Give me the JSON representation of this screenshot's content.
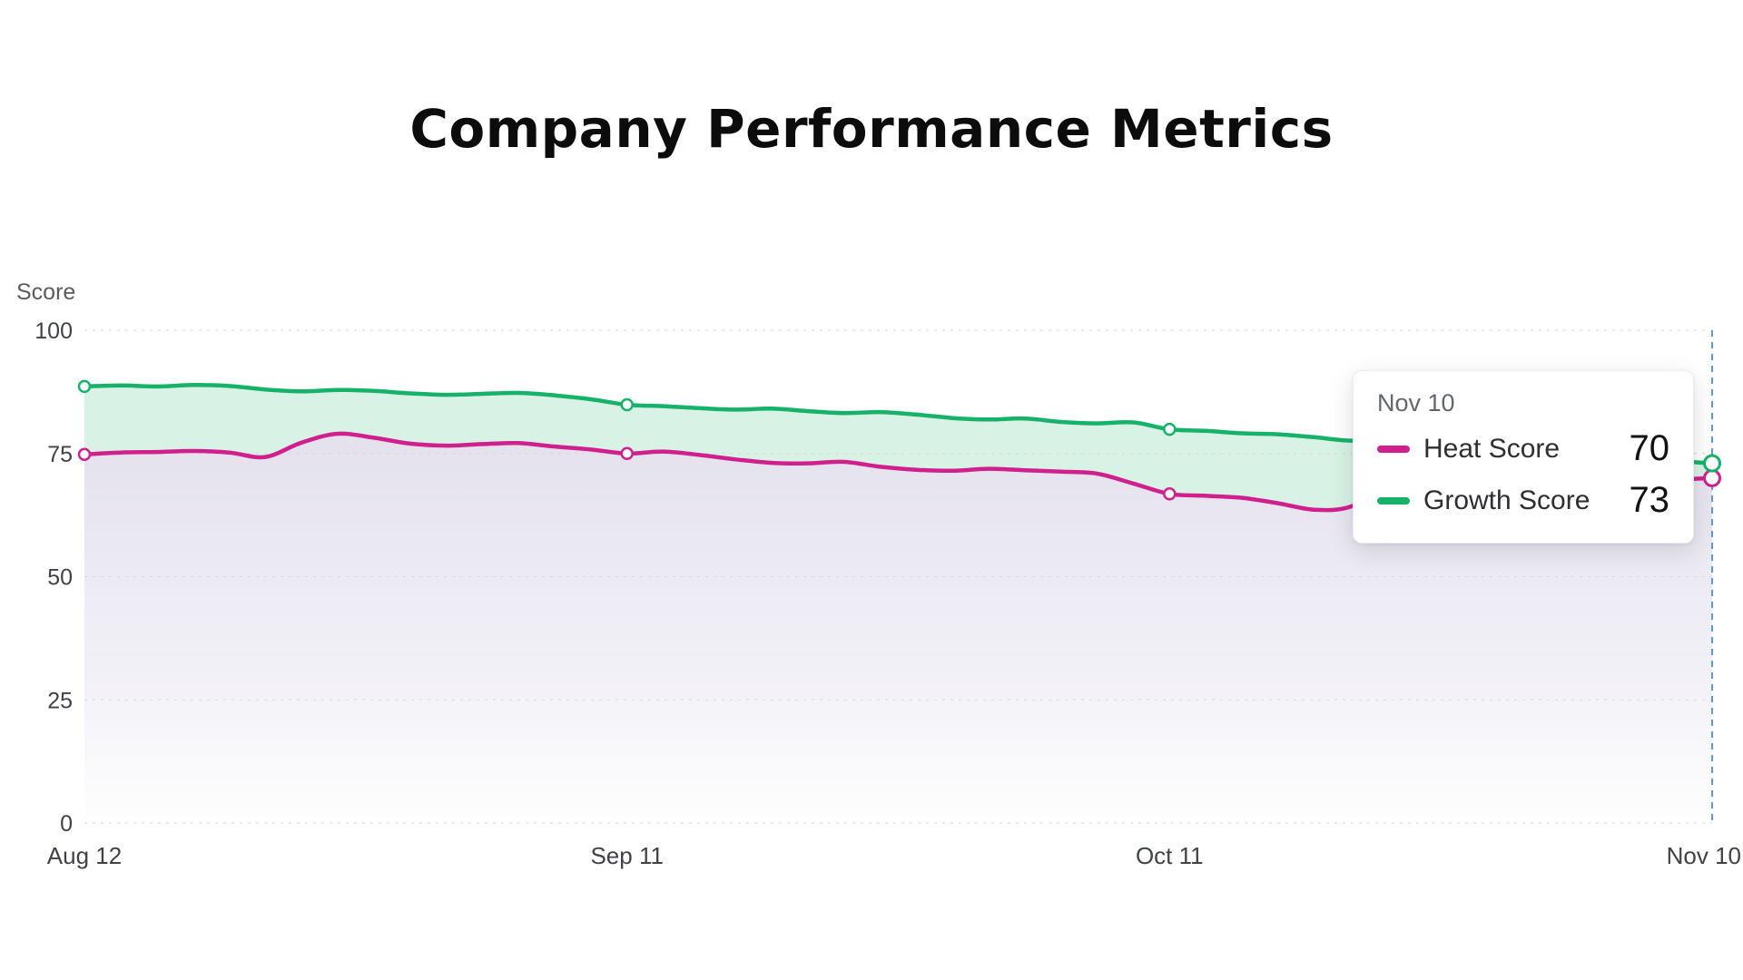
{
  "chart_data": {
    "type": "line",
    "title": "Company Performance Metrics",
    "y_axis": {
      "label": "Score",
      "min": 0,
      "max": 100,
      "ticks": [
        0,
        25,
        50,
        75,
        100
      ]
    },
    "x_axis": {
      "min": 0,
      "max": 90,
      "ticks": [
        {
          "day": 0,
          "label": "Aug 12"
        },
        {
          "day": 30,
          "label": "Sep 11"
        },
        {
          "day": 60,
          "label": "Oct 11"
        },
        {
          "day": 90,
          "label": "Nov 10"
        }
      ]
    },
    "grid": true,
    "legend_position": "tooltip",
    "x_days": [
      0,
      2,
      4,
      6,
      8,
      10,
      12,
      14,
      16,
      18,
      20,
      22,
      24,
      26,
      28,
      30,
      32,
      34,
      36,
      38,
      40,
      42,
      44,
      46,
      48,
      50,
      52,
      54,
      56,
      58,
      60,
      62,
      64,
      66,
      68,
      70,
      72,
      74,
      76,
      78,
      80,
      82,
      84,
      86,
      88,
      90
    ],
    "series": [
      {
        "name": "Heat Score",
        "color": "#d0208e",
        "marker_days": [
          0,
          30,
          60,
          90
        ],
        "values": [
          74.8,
          75.2,
          75.3,
          75.5,
          75.2,
          74.3,
          77.2,
          79.0,
          78.2,
          77.0,
          76.6,
          76.9,
          77.1,
          76.4,
          75.8,
          75.0,
          75.4,
          74.7,
          73.8,
          73.1,
          73.0,
          73.3,
          72.3,
          71.7,
          71.5,
          71.9,
          71.6,
          71.3,
          70.9,
          68.9,
          66.8,
          66.4,
          66.0,
          64.9,
          63.6,
          64.2,
          68.6,
          69.0,
          69.3,
          69.0,
          69.4,
          69.1,
          69.5,
          69.3,
          69.7,
          70.0
        ]
      },
      {
        "name": "Growth Score",
        "color": "#17b26a",
        "marker_days": [
          0,
          30,
          60,
          90
        ],
        "values": [
          88.6,
          88.8,
          88.6,
          88.9,
          88.7,
          88.0,
          87.6,
          87.9,
          87.7,
          87.2,
          86.9,
          87.1,
          87.3,
          86.8,
          86.0,
          84.9,
          84.6,
          84.2,
          83.9,
          84.1,
          83.6,
          83.2,
          83.4,
          82.9,
          82.2,
          81.9,
          82.1,
          81.4,
          81.1,
          81.3,
          79.9,
          79.6,
          79.1,
          78.9,
          78.3,
          77.6,
          77.9,
          77.3,
          76.9,
          76.2,
          75.6,
          75.1,
          74.6,
          74.1,
          73.5,
          73.0
        ]
      }
    ],
    "crosshair": {
      "day": 90,
      "color": "#5b9bd5"
    },
    "fills": {
      "band": "#d9f2e6",
      "under_top": "#e5e2ee",
      "under_bottom": "#fefefe"
    }
  },
  "tooltip": {
    "date": "Nov 10",
    "rows": [
      {
        "label": "Heat Score",
        "value": "70",
        "color": "#d0208e"
      },
      {
        "label": "Growth Score",
        "value": "73",
        "color": "#17b26a"
      }
    ]
  }
}
